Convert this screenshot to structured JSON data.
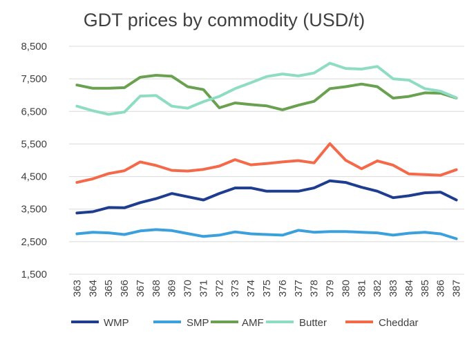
{
  "chart_data": {
    "type": "line",
    "title": "GDT prices by commodity (USD/t)",
    "xlabel": "",
    "ylabel": "",
    "ylim": [
      1500,
      8500
    ],
    "yticks": [
      "1,500",
      "2,500",
      "3,500",
      "4,500",
      "5,500",
      "6,500",
      "7,500",
      "8,500"
    ],
    "ytick_values": [
      1500,
      2500,
      3500,
      4500,
      5500,
      6500,
      7500,
      8500
    ],
    "grid": true,
    "legend_position": "bottom",
    "x": [
      "363",
      "364",
      "365",
      "366",
      "367",
      "368",
      "369",
      "370",
      "371",
      "372",
      "373",
      "374",
      "375",
      "376",
      "377",
      "378",
      "379",
      "380",
      "381",
      "382",
      "383",
      "384",
      "385",
      "386",
      "387"
    ],
    "series": [
      {
        "name": "WMP",
        "color": "#1f3d8f",
        "values": [
          3380,
          3420,
          3550,
          3540,
          3700,
          3820,
          3980,
          3880,
          3780,
          3980,
          4150,
          4150,
          4050,
          4050,
          4050,
          4150,
          4370,
          4320,
          4170,
          4050,
          3850,
          3910,
          4000,
          4020,
          3780
        ]
      },
      {
        "name": "SMP",
        "color": "#3ba0db",
        "values": [
          2740,
          2790,
          2770,
          2720,
          2830,
          2870,
          2840,
          2750,
          2660,
          2700,
          2800,
          2740,
          2720,
          2700,
          2850,
          2790,
          2810,
          2810,
          2790,
          2770,
          2700,
          2760,
          2790,
          2740,
          2590
        ]
      },
      {
        "name": "AMF",
        "color": "#6aa150",
        "values": [
          7310,
          7210,
          7210,
          7230,
          7550,
          7610,
          7580,
          7260,
          7170,
          6610,
          6760,
          6710,
          6670,
          6550,
          6690,
          6810,
          7200,
          7260,
          7340,
          7260,
          6910,
          6960,
          7070,
          7060,
          6910
        ]
      },
      {
        "name": "Butter",
        "color": "#8fdcc4",
        "values": [
          6660,
          6520,
          6410,
          6480,
          6970,
          6990,
          6660,
          6600,
          6800,
          6960,
          7200,
          7380,
          7570,
          7650,
          7590,
          7680,
          7980,
          7820,
          7800,
          7880,
          7500,
          7460,
          7200,
          7120,
          6920
        ]
      },
      {
        "name": "Cheddar",
        "color": "#f4694a",
        "values": [
          4320,
          4430,
          4590,
          4680,
          4950,
          4840,
          4690,
          4670,
          4720,
          4820,
          5020,
          4860,
          4900,
          4950,
          4990,
          4920,
          5510,
          5000,
          4740,
          4980,
          4850,
          4580,
          4560,
          4540,
          4710
        ]
      }
    ]
  }
}
